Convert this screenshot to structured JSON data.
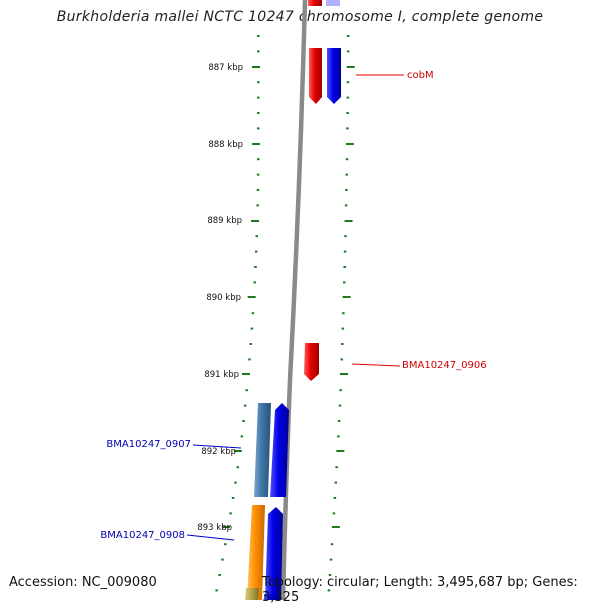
{
  "title": "Burkholderia mallei NCTC 10247 chromosome I, complete genome",
  "footer": {
    "accession": "Accession: NC_009080",
    "summary": "Topology: circular; Length: 3,495,687 bp; Genes: 3,325"
  },
  "ruler": {
    "ticks": [
      "887 kbp",
      "888 kbp",
      "889 kbp",
      "890 kbp",
      "891 kbp",
      "892 kbp",
      "893 kbp"
    ]
  },
  "gene_labels": [
    {
      "text": "cobM",
      "strand": "forward"
    },
    {
      "text": "BMA10247_0906",
      "strand": "forward"
    },
    {
      "text": "BMA10247_0907",
      "strand": "reverse"
    },
    {
      "text": "BMA10247_0908",
      "strand": "reverse"
    }
  ],
  "colors": {
    "forward_gene": "#e40000",
    "reverse_gene": "#0000e6",
    "cds_steelblue": "#3f78a8",
    "cds_orange": "#ff9000",
    "cds_olive": "#b5a648",
    "backbone": "#8a8a8a",
    "tick": "#1f7a1f"
  }
}
